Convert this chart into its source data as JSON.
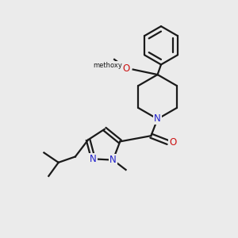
{
  "background_color": "#ebebeb",
  "bond_color": "#1a1a1a",
  "nitrogen_color": "#2020cc",
  "oxygen_color": "#cc1111",
  "bond_width": 1.6,
  "figsize": [
    3.0,
    3.0
  ],
  "dpi": 100,
  "xlim": [
    0,
    10
  ],
  "ylim": [
    0,
    10
  ]
}
